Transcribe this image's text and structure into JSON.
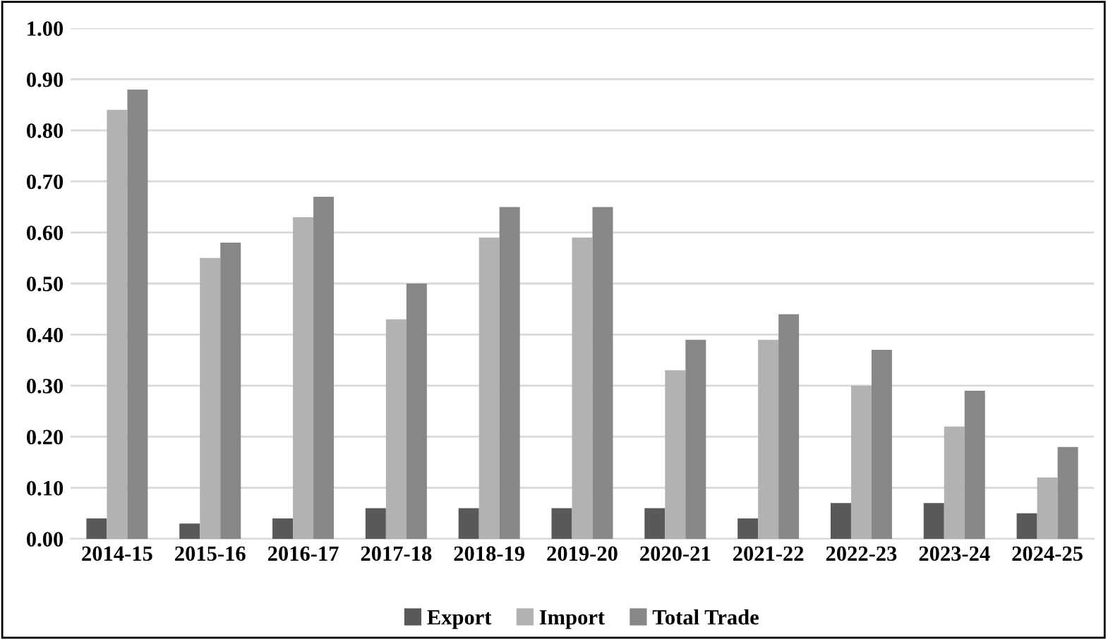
{
  "chart_data": {
    "type": "bar",
    "categories": [
      "2014-15",
      "2015-16",
      "2016-17",
      "2017-18",
      "2018-19",
      "2019-20",
      "2020-21",
      "2021-22",
      "2022-23",
      "2023-24",
      "2024-25"
    ],
    "series": [
      {
        "name": "Export",
        "color": "#595959",
        "values": [
          0.04,
          0.03,
          0.04,
          0.06,
          0.06,
          0.06,
          0.06,
          0.04,
          0.07,
          0.07,
          0.05
        ]
      },
      {
        "name": "Import",
        "color": "#b2b2b2",
        "values": [
          0.84,
          0.55,
          0.63,
          0.43,
          0.59,
          0.59,
          0.33,
          0.39,
          0.3,
          0.22,
          0.12
        ]
      },
      {
        "name": "Total Trade",
        "color": "#878787",
        "values": [
          0.88,
          0.58,
          0.67,
          0.5,
          0.65,
          0.65,
          0.39,
          0.44,
          0.37,
          0.29,
          0.18
        ]
      }
    ],
    "ylim": [
      0,
      1.0
    ],
    "yticks": [
      {
        "value": 0,
        "label": "0.00"
      },
      {
        "value": 0.1,
        "label": "0.10"
      },
      {
        "value": 0.2,
        "label": "0.20"
      },
      {
        "value": 0.3,
        "label": "0.30"
      },
      {
        "value": 0.4,
        "label": "0.40"
      },
      {
        "value": 0.5,
        "label": "0.50"
      },
      {
        "value": 0.6,
        "label": "0.60"
      },
      {
        "value": 0.7,
        "label": "0.70"
      },
      {
        "value": 0.8,
        "label": "0.80"
      },
      {
        "value": 0.9,
        "label": "0.90"
      },
      {
        "value": 1.0,
        "label": "1.00"
      }
    ],
    "grid": "y",
    "legend": "bottom"
  }
}
